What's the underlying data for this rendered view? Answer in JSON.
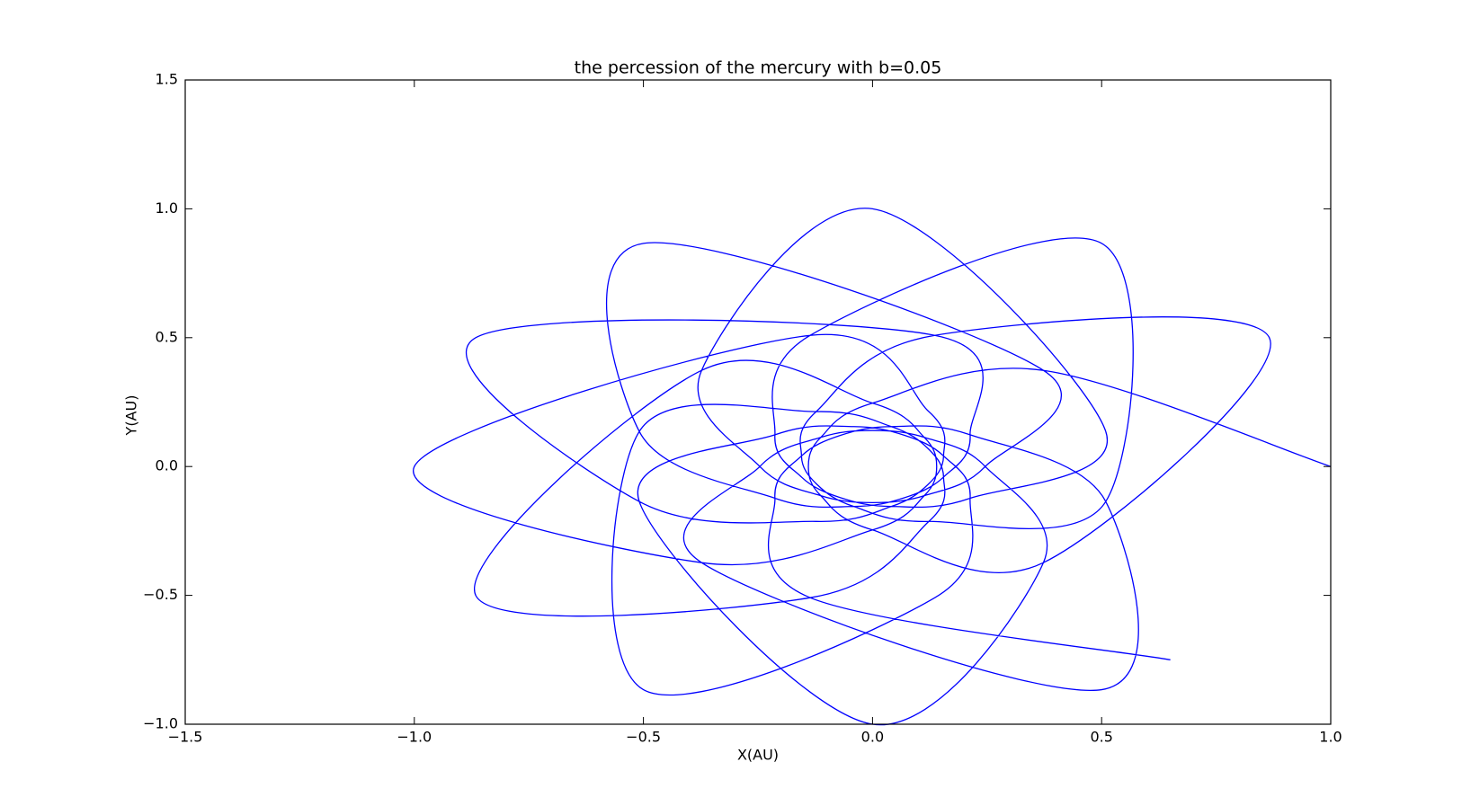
{
  "chart_data": {
    "type": "line",
    "title": "the percession of the mercury with b=0.05",
    "xlabel": "X(AU)",
    "ylabel": "Y(AU)",
    "color": "#0000ff",
    "x": [
      1,
      0.373,
      0,
      -0.113,
      -0.14,
      -0.113,
      0,
      0.373,
      0.866,
      0.136,
      -0.123,
      -0.155,
      -0.121,
      -0.041,
      0.123,
      0.509,
      0.5,
      -0.136,
      -0.213,
      -0.155,
      -0.07,
      0.041,
      0.213,
      0.509,
      0,
      -0.373,
      -0.246,
      -0.113,
      0,
      0.113,
      0.246,
      0.373,
      -0.5,
      -0.509,
      -0.213,
      -0.041,
      0.07,
      0.155,
      0.213,
      0.136,
      -0.866,
      -0.509,
      -0.123,
      0.041,
      0.121,
      0.155,
      0.123,
      -0.136,
      -1,
      -0.373,
      0,
      0.113,
      0.14,
      0.113,
      0,
      -0.373,
      -0.866,
      -0.136,
      0.123,
      0.155,
      0.121,
      0.041,
      -0.123,
      -0.509,
      -0.5,
      0.136,
      0.213,
      0.155,
      0.07,
      -0.041,
      -0.213,
      -0.509,
      0,
      0.373,
      0.246,
      0.113,
      0,
      -0.113,
      -0.246,
      -0.373,
      0.5,
      0.509,
      0.213,
      0.041,
      -0.07,
      -0.155,
      -0.213,
      -0.136,
      0.65
    ],
    "y": [
      0,
      0.373,
      0.246,
      0.113,
      0,
      -0.113,
      -0.246,
      -0.373,
      0.5,
      0.509,
      0.213,
      0.041,
      -0.07,
      -0.155,
      -0.213,
      -0.136,
      0.866,
      0.509,
      0.123,
      -0.041,
      -0.121,
      -0.155,
      -0.123,
      0.136,
      1,
      0.373,
      0,
      -0.113,
      -0.14,
      -0.113,
      0,
      0.373,
      0.866,
      0.136,
      -0.123,
      -0.155,
      -0.121,
      -0.041,
      0.123,
      0.509,
      0.5,
      -0.136,
      -0.213,
      -0.155,
      -0.07,
      0.041,
      0.213,
      0.509,
      0,
      -0.373,
      -0.246,
      -0.113,
      0,
      0.113,
      0.246,
      0.373,
      -0.5,
      -0.509,
      -0.213,
      -0.041,
      0.07,
      0.155,
      0.213,
      0.136,
      -0.866,
      -0.509,
      -0.123,
      0.041,
      0.121,
      0.155,
      0.123,
      -0.136,
      -1,
      -0.373,
      0,
      0.113,
      0.14,
      0.113,
      0,
      -0.373,
      -0.866,
      -0.136,
      0.123,
      0.155,
      0.121,
      0.041,
      -0.123,
      -0.509,
      -0.75
    ],
    "xlim": [
      -1.5,
      1
    ],
    "ylim": [
      -1,
      1.5
    ],
    "xticks": [
      {
        "value": -1.5,
        "label": "−1.5"
      },
      {
        "value": -1,
        "label": "−1.0"
      },
      {
        "value": -0.5,
        "label": "−0.5"
      },
      {
        "value": 0,
        "label": "0.0"
      },
      0.5,
      {
        "value": 1,
        "label": "1.0"
      }
    ],
    "yticks": [
      {
        "value": -1,
        "label": "−1.0"
      },
      {
        "value": -0.5,
        "label": "−0.5"
      },
      {
        "value": 0,
        "label": "0.0"
      },
      0.5,
      {
        "value": 1,
        "label": "1.0"
      },
      {
        "value": 1.5,
        "label": "1.5"
      }
    ],
    "grid": false
  }
}
